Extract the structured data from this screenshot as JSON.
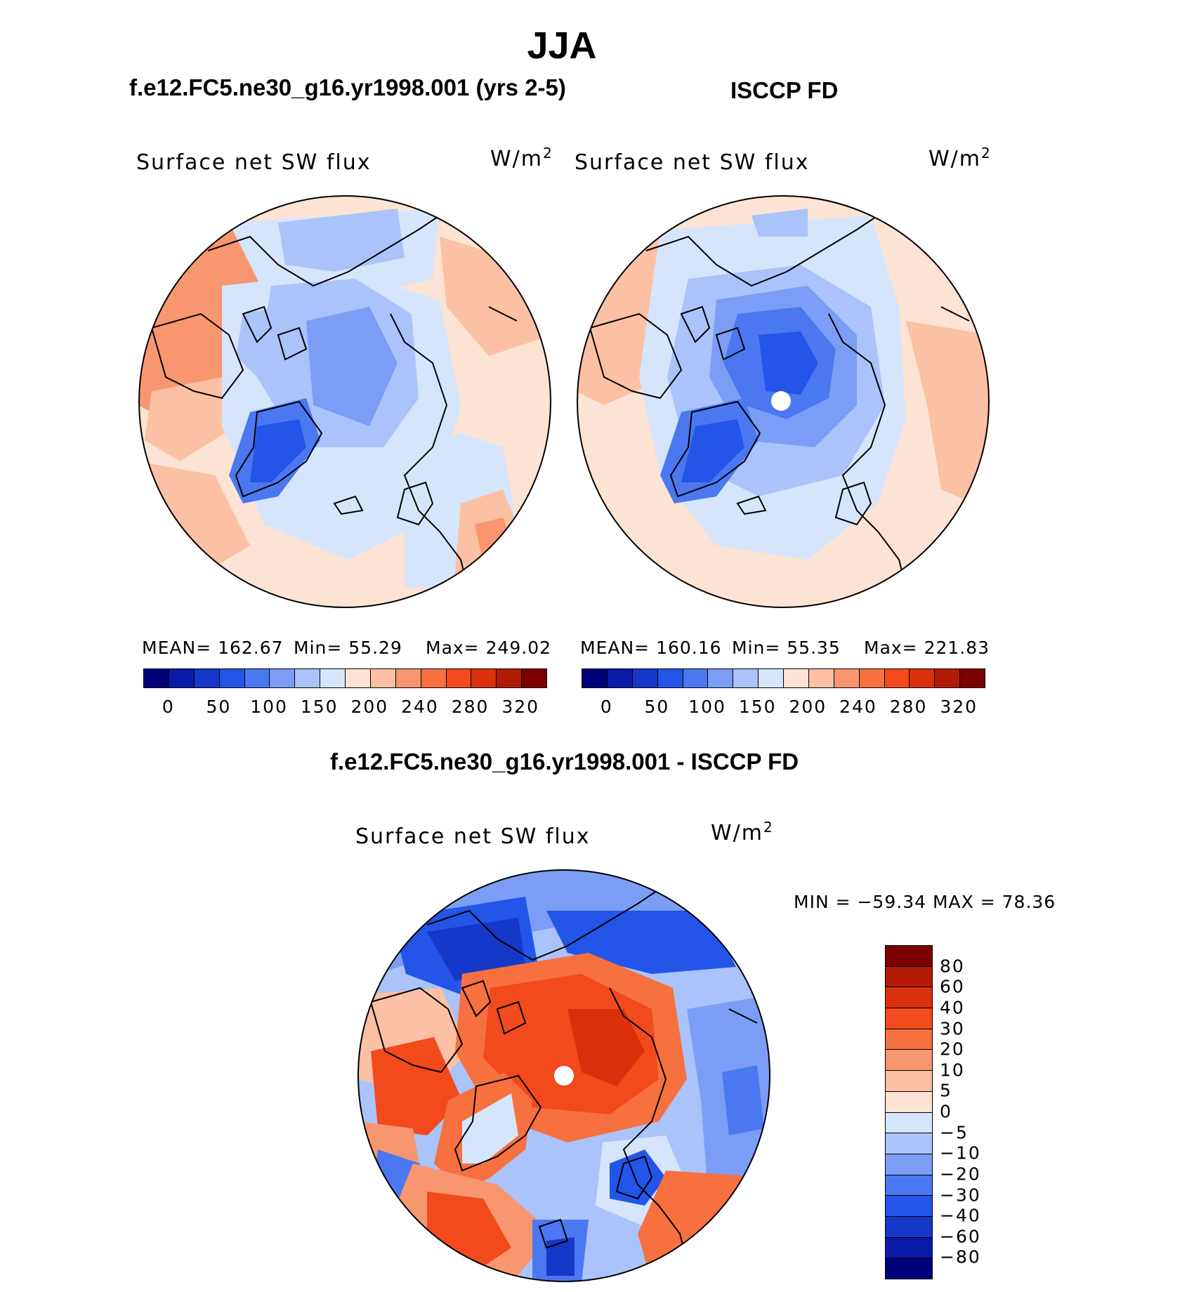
{
  "figure": {
    "season": "JJA",
    "left_title": "f.e12.FC5.ne30_g16.yr1998.001 (yrs 2-5)",
    "right_title": "ISCCP FD",
    "diff_title": "f.e12.FC5.ne30_g16.yr1998.001 - ISCCP FD"
  },
  "panels": {
    "model": {
      "variable": "Surface net SW flux",
      "units_base": "W/m",
      "units_exp": "2",
      "mean_label": "MEAN= 162.67",
      "min_label": "Min=   55.29",
      "max_label": "Max= 249.02"
    },
    "obs": {
      "variable": "Surface net SW flux",
      "units_base": "W/m",
      "units_exp": "2",
      "mean_label": "MEAN= 160.16",
      "min_label": "Min=   55.35",
      "max_label": "Max= 221.83"
    },
    "diff": {
      "variable": "Surface net SW flux",
      "units_base": "W/m",
      "units_exp": "2",
      "minmax_label": "MIN = −59.34 MAX =  78.36"
    }
  },
  "abs_colorbar": {
    "colors": [
      "#00007a",
      "#0a1aa8",
      "#1638c8",
      "#2255e8",
      "#4b78f0",
      "#7b9df5",
      "#aac3fa",
      "#d5e6fc",
      "#fde3d3",
      "#fcc0a4",
      "#f89670",
      "#f7703f",
      "#f24a1c",
      "#db300c",
      "#b31a05",
      "#7d0000"
    ],
    "ticks": [
      "0",
      "50",
      "100",
      "150",
      "200",
      "240",
      "280",
      "320"
    ]
  },
  "diff_colorbar": {
    "colors": [
      "#7d0000",
      "#b31a05",
      "#db300c",
      "#f24a1c",
      "#f7703f",
      "#f89670",
      "#fcc0a4",
      "#fde3d3",
      "#d5e6fc",
      "#aac3fa",
      "#7b9df5",
      "#4b78f0",
      "#2255e8",
      "#1638c8",
      "#0a1aa8",
      "#00007a"
    ],
    "ticks": [
      "80",
      "60",
      "40",
      "30",
      "20",
      "10",
      "5",
      "0",
      "−5",
      "−10",
      "−20",
      "−30",
      "−40",
      "−60",
      "−80"
    ]
  },
  "chart_data": [
    {
      "type": "heatmap",
      "title": "Surface net SW flux",
      "subtitle": "f.e12.FC5.ne30_g16.yr1998.001 (yrs 2-5)",
      "projection": "north polar stereographic",
      "units": "W/m2",
      "mean": 162.67,
      "min": 55.29,
      "max": 249.02,
      "levels": [
        0,
        25,
        50,
        75,
        100,
        125,
        150,
        175,
        200,
        220,
        240,
        260,
        280,
        300,
        320
      ]
    },
    {
      "type": "heatmap",
      "title": "Surface net SW flux",
      "subtitle": "ISCCP FD",
      "projection": "north polar stereographic",
      "units": "W/m2",
      "mean": 160.16,
      "min": 55.35,
      "max": 221.83,
      "levels": [
        0,
        25,
        50,
        75,
        100,
        125,
        150,
        175,
        200,
        220,
        240,
        260,
        280,
        300,
        320
      ]
    },
    {
      "type": "heatmap",
      "title": "Surface net SW flux",
      "subtitle": "f.e12.FC5.ne30_g16.yr1998.001 - ISCCP FD",
      "projection": "north polar stereographic",
      "units": "W/m2",
      "min": -59.34,
      "max": 78.36,
      "levels": [
        -80,
        -60,
        -40,
        -30,
        -20,
        -10,
        -5,
        0,
        5,
        10,
        20,
        30,
        40,
        60,
        80
      ]
    }
  ]
}
